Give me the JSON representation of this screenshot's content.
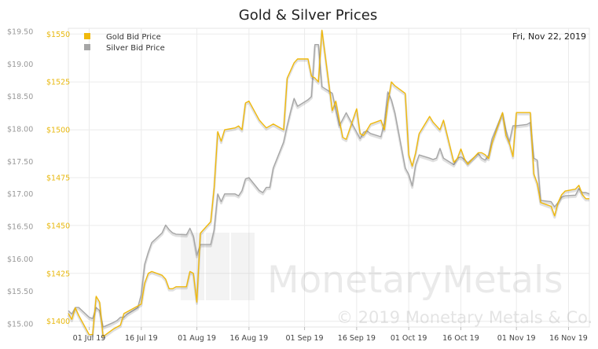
{
  "chart_data": {
    "type": "line",
    "title": "Gold & Silver Prices",
    "date_label": "Fri, Nov 22, 2019",
    "watermark": {
      "brand": "MonetaryMetals",
      "copyright": "© 2019 Monetary Metals & Co."
    },
    "x_ticks": [
      "01 Jul 19",
      "16 Jul 19",
      "01 Aug 19",
      "16 Aug 19",
      "01 Sep 19",
      "16 Sep 19",
      "01 Oct 19",
      "16 Oct 19",
      "01 Nov 19",
      "16 Nov 19"
    ],
    "x_range": [
      "2019-06-25",
      "2019-11-22"
    ],
    "y_left": {
      "name": "Silver",
      "ticks": [
        "$19.50",
        "$19.00",
        "$18.50",
        "$18.00",
        "$17.50",
        "$17.00",
        "$16.50",
        "$16.00",
        "$15.50",
        "$15.00"
      ],
      "range": [
        14.95,
        19.55
      ],
      "color": "#999999"
    },
    "y_right": {
      "name": "Gold",
      "ticks": [
        "$1550",
        "$1525",
        "$1500",
        "$1475",
        "$1450",
        "$1425",
        "$1400"
      ],
      "range": [
        1397,
        1553
      ],
      "color": "#e8b80e"
    },
    "legend": {
      "placement": "top-left"
    },
    "grid": true,
    "series": [
      {
        "name": "Gold Bid Price",
        "axis": "right",
        "color": "#f0b90c",
        "points": [
          [
            "2019-06-25",
            1404
          ],
          [
            "2019-06-26",
            1401
          ],
          [
            "2019-06-27",
            1407
          ],
          [
            "2019-06-28",
            1403
          ],
          [
            "2019-07-01",
            1393
          ],
          [
            "2019-07-02",
            1393
          ],
          [
            "2019-07-03",
            1413
          ],
          [
            "2019-07-04",
            1410
          ],
          [
            "2019-07-05",
            1392
          ],
          [
            "2019-07-08",
            1396
          ],
          [
            "2019-07-09",
            1397
          ],
          [
            "2019-07-10",
            1398
          ],
          [
            "2019-07-11",
            1404
          ],
          [
            "2019-07-12",
            1405
          ],
          [
            "2019-07-15",
            1408
          ],
          [
            "2019-07-16",
            1409
          ],
          [
            "2019-07-17",
            1420
          ],
          [
            "2019-07-18",
            1425
          ],
          [
            "2019-07-19",
            1426
          ],
          [
            "2019-07-22",
            1424
          ],
          [
            "2019-07-23",
            1422
          ],
          [
            "2019-07-24",
            1417
          ],
          [
            "2019-07-25",
            1417
          ],
          [
            "2019-07-26",
            1418
          ],
          [
            "2019-07-29",
            1418
          ],
          [
            "2019-07-30",
            1426
          ],
          [
            "2019-07-31",
            1425
          ],
          [
            "2019-08-01",
            1410
          ],
          [
            "2019-08-02",
            1446
          ],
          [
            "2019-08-05",
            1452
          ],
          [
            "2019-08-06",
            1470
          ],
          [
            "2019-08-07",
            1499
          ],
          [
            "2019-08-08",
            1494
          ],
          [
            "2019-08-09",
            1500
          ],
          [
            "2019-08-12",
            1501
          ],
          [
            "2019-08-13",
            1502
          ],
          [
            "2019-08-14",
            1500
          ],
          [
            "2019-08-15",
            1514
          ],
          [
            "2019-08-16",
            1515
          ],
          [
            "2019-08-19",
            1505
          ],
          [
            "2019-08-20",
            1503
          ],
          [
            "2019-08-21",
            1501
          ],
          [
            "2019-08-22",
            1502
          ],
          [
            "2019-08-23",
            1503
          ],
          [
            "2019-08-26",
            1500
          ],
          [
            "2019-08-27",
            1527
          ],
          [
            "2019-08-28",
            1531
          ],
          [
            "2019-08-29",
            1535
          ],
          [
            "2019-08-30",
            1537
          ],
          [
            "2019-09-02",
            1537
          ],
          [
            "2019-09-03",
            1528
          ],
          [
            "2019-09-04",
            1527
          ],
          [
            "2019-09-05",
            1525
          ],
          [
            "2019-09-06",
            1552
          ],
          [
            "2019-09-09",
            1510
          ],
          [
            "2019-09-10",
            1515
          ],
          [
            "2019-09-11",
            1505
          ],
          [
            "2019-09-12",
            1496
          ],
          [
            "2019-09-13",
            1495
          ],
          [
            "2019-09-16",
            1511
          ],
          [
            "2019-09-17",
            1498
          ],
          [
            "2019-09-18",
            1497
          ],
          [
            "2019-09-19",
            1500
          ],
          [
            "2019-09-20",
            1503
          ],
          [
            "2019-09-23",
            1505
          ],
          [
            "2019-09-24",
            1500
          ],
          [
            "2019-09-25",
            1514
          ],
          [
            "2019-09-26",
            1525
          ],
          [
            "2019-09-27",
            1523
          ],
          [
            "2019-09-30",
            1519
          ],
          [
            "2019-10-01",
            1487
          ],
          [
            "2019-10-02",
            1481
          ],
          [
            "2019-10-03",
            1488
          ],
          [
            "2019-10-04",
            1498
          ],
          [
            "2019-10-07",
            1507
          ],
          [
            "2019-10-08",
            1504
          ],
          [
            "2019-10-09",
            1502
          ],
          [
            "2019-10-10",
            1500
          ],
          [
            "2019-10-11",
            1505
          ],
          [
            "2019-10-14",
            1483
          ],
          [
            "2019-10-15",
            1485
          ],
          [
            "2019-10-16",
            1490
          ],
          [
            "2019-10-17",
            1485
          ],
          [
            "2019-10-18",
            1482
          ],
          [
            "2019-10-21",
            1488
          ],
          [
            "2019-10-22",
            1488
          ],
          [
            "2019-10-23",
            1487
          ],
          [
            "2019-10-24",
            1485
          ],
          [
            "2019-10-25",
            1493
          ],
          [
            "2019-10-28",
            1509
          ],
          [
            "2019-10-29",
            1497
          ],
          [
            "2019-10-30",
            1493
          ],
          [
            "2019-10-31",
            1486
          ],
          [
            "2019-11-01",
            1509
          ],
          [
            "2019-11-04",
            1509
          ],
          [
            "2019-11-05",
            1509
          ],
          [
            "2019-11-06",
            1477
          ],
          [
            "2019-11-07",
            1472
          ],
          [
            "2019-11-08",
            1462
          ],
          [
            "2019-11-11",
            1460
          ],
          [
            "2019-11-12",
            1455
          ],
          [
            "2019-11-13",
            1462
          ],
          [
            "2019-11-14",
            1466
          ],
          [
            "2019-11-15",
            1468
          ],
          [
            "2019-11-18",
            1469
          ],
          [
            "2019-11-19",
            1471
          ],
          [
            "2019-11-20",
            1466
          ],
          [
            "2019-11-21",
            1464
          ],
          [
            "2019-11-22",
            1464
          ]
        ]
      },
      {
        "name": "Silver Bid Price",
        "axis": "left",
        "color": "#a6a6a6",
        "points": [
          [
            "2019-06-25",
            15.2
          ],
          [
            "2019-06-26",
            15.15
          ],
          [
            "2019-06-27",
            15.25
          ],
          [
            "2019-06-28",
            15.25
          ],
          [
            "2019-07-01",
            15.1
          ],
          [
            "2019-07-02",
            15.08
          ],
          [
            "2019-07-03",
            15.25
          ],
          [
            "2019-07-04",
            15.2
          ],
          [
            "2019-07-05",
            14.95
          ],
          [
            "2019-07-08",
            15.02
          ],
          [
            "2019-07-09",
            15.05
          ],
          [
            "2019-07-10",
            15.1
          ],
          [
            "2019-07-11",
            15.1
          ],
          [
            "2019-07-12",
            15.15
          ],
          [
            "2019-07-15",
            15.25
          ],
          [
            "2019-07-16",
            15.45
          ],
          [
            "2019-07-17",
            15.92
          ],
          [
            "2019-07-18",
            16.1
          ],
          [
            "2019-07-19",
            16.25
          ],
          [
            "2019-07-22",
            16.4
          ],
          [
            "2019-07-23",
            16.52
          ],
          [
            "2019-07-24",
            16.45
          ],
          [
            "2019-07-25",
            16.4
          ],
          [
            "2019-07-26",
            16.38
          ],
          [
            "2019-07-29",
            16.37
          ],
          [
            "2019-07-30",
            16.47
          ],
          [
            "2019-07-31",
            16.35
          ],
          [
            "2019-08-01",
            16.05
          ],
          [
            "2019-08-02",
            16.22
          ],
          [
            "2019-08-05",
            16.22
          ],
          [
            "2019-08-06",
            16.45
          ],
          [
            "2019-08-07",
            17.0
          ],
          [
            "2019-08-08",
            16.88
          ],
          [
            "2019-08-09",
            17.0
          ],
          [
            "2019-08-12",
            17.0
          ],
          [
            "2019-08-13",
            16.97
          ],
          [
            "2019-08-14",
            17.05
          ],
          [
            "2019-08-15",
            17.23
          ],
          [
            "2019-08-16",
            17.25
          ],
          [
            "2019-08-19",
            17.05
          ],
          [
            "2019-08-20",
            17.02
          ],
          [
            "2019-08-21",
            17.1
          ],
          [
            "2019-08-22",
            17.1
          ],
          [
            "2019-08-23",
            17.4
          ],
          [
            "2019-08-26",
            17.8
          ],
          [
            "2019-08-27",
            18.05
          ],
          [
            "2019-08-28",
            18.27
          ],
          [
            "2019-08-29",
            18.47
          ],
          [
            "2019-08-30",
            18.35
          ],
          [
            "2019-09-02",
            18.45
          ],
          [
            "2019-09-03",
            18.5
          ],
          [
            "2019-09-04",
            19.3
          ],
          [
            "2019-09-05",
            19.3
          ],
          [
            "2019-09-06",
            18.65
          ],
          [
            "2019-09-09",
            18.55
          ],
          [
            "2019-09-10",
            18.3
          ],
          [
            "2019-09-11",
            18.05
          ],
          [
            "2019-09-12",
            18.15
          ],
          [
            "2019-09-13",
            18.25
          ],
          [
            "2019-09-16",
            17.95
          ],
          [
            "2019-09-17",
            17.85
          ],
          [
            "2019-09-18",
            17.95
          ],
          [
            "2019-09-19",
            17.97
          ],
          [
            "2019-09-20",
            17.93
          ],
          [
            "2019-09-23",
            17.88
          ],
          [
            "2019-09-24",
            18.1
          ],
          [
            "2019-09-25",
            18.57
          ],
          [
            "2019-09-26",
            18.45
          ],
          [
            "2019-09-27",
            18.25
          ],
          [
            "2019-09-30",
            17.4
          ],
          [
            "2019-10-01",
            17.3
          ],
          [
            "2019-10-02",
            17.12
          ],
          [
            "2019-10-03",
            17.45
          ],
          [
            "2019-10-04",
            17.6
          ],
          [
            "2019-10-07",
            17.55
          ],
          [
            "2019-10-08",
            17.53
          ],
          [
            "2019-10-09",
            17.55
          ],
          [
            "2019-10-10",
            17.7
          ],
          [
            "2019-10-11",
            17.55
          ],
          [
            "2019-10-14",
            17.45
          ],
          [
            "2019-10-15",
            17.55
          ],
          [
            "2019-10-16",
            17.57
          ],
          [
            "2019-10-17",
            17.53
          ],
          [
            "2019-10-18",
            17.48
          ],
          [
            "2019-10-21",
            17.62
          ],
          [
            "2019-10-22",
            17.55
          ],
          [
            "2019-10-23",
            17.52
          ],
          [
            "2019-10-24",
            17.6
          ],
          [
            "2019-10-25",
            17.85
          ],
          [
            "2019-10-28",
            18.25
          ],
          [
            "2019-10-29",
            17.98
          ],
          [
            "2019-10-30",
            17.8
          ],
          [
            "2019-10-31",
            18.05
          ],
          [
            "2019-11-01",
            18.05
          ],
          [
            "2019-11-04",
            18.07
          ],
          [
            "2019-11-05",
            18.1
          ],
          [
            "2019-11-06",
            17.55
          ],
          [
            "2019-11-07",
            17.52
          ],
          [
            "2019-11-08",
            16.9
          ],
          [
            "2019-11-11",
            16.88
          ],
          [
            "2019-11-12",
            16.8
          ],
          [
            "2019-11-13",
            16.87
          ],
          [
            "2019-11-14",
            16.95
          ],
          [
            "2019-11-15",
            16.97
          ],
          [
            "2019-11-18",
            16.98
          ],
          [
            "2019-11-19",
            17.08
          ],
          [
            "2019-11-20",
            17.02
          ],
          [
            "2019-11-21",
            17.02
          ],
          [
            "2019-11-22",
            17.0
          ]
        ]
      }
    ]
  }
}
